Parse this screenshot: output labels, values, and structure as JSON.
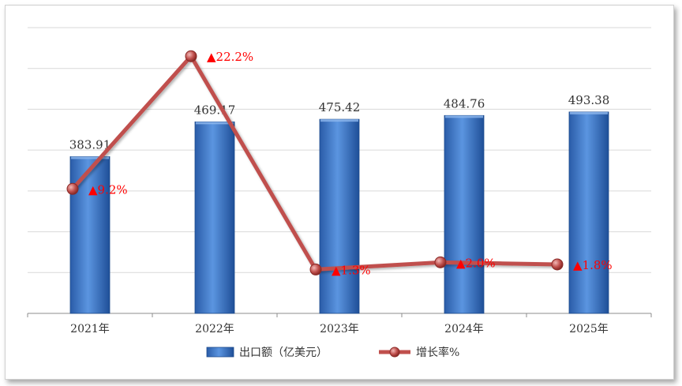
{
  "chart_data": {
    "type": "bar",
    "categories": [
      "2021年",
      "2022年",
      "2023年",
      "2024年",
      "2025年"
    ],
    "series": [
      {
        "name": "出口额（亿美元）",
        "type": "bar",
        "values": [
          383.91,
          469.17,
          475.42,
          484.76,
          493.38
        ],
        "labels": [
          "383.91",
          "469.17",
          "475.42",
          "484.76",
          "493.38"
        ],
        "color": "#3b73c4"
      },
      {
        "name": "增长率%",
        "type": "line",
        "values": [
          9.2,
          22.2,
          1.3,
          2.0,
          1.8
        ],
        "labels": [
          "▲9.2%",
          "▲22.2%",
          "▲1.3%",
          "▲2.0%",
          "▲1.8%"
        ],
        "color": "#c0504d"
      }
    ],
    "bar_ylim": [
      0,
      700
    ],
    "line_ylim": [
      -3,
      25
    ],
    "grid": true,
    "legend": "bottom"
  }
}
